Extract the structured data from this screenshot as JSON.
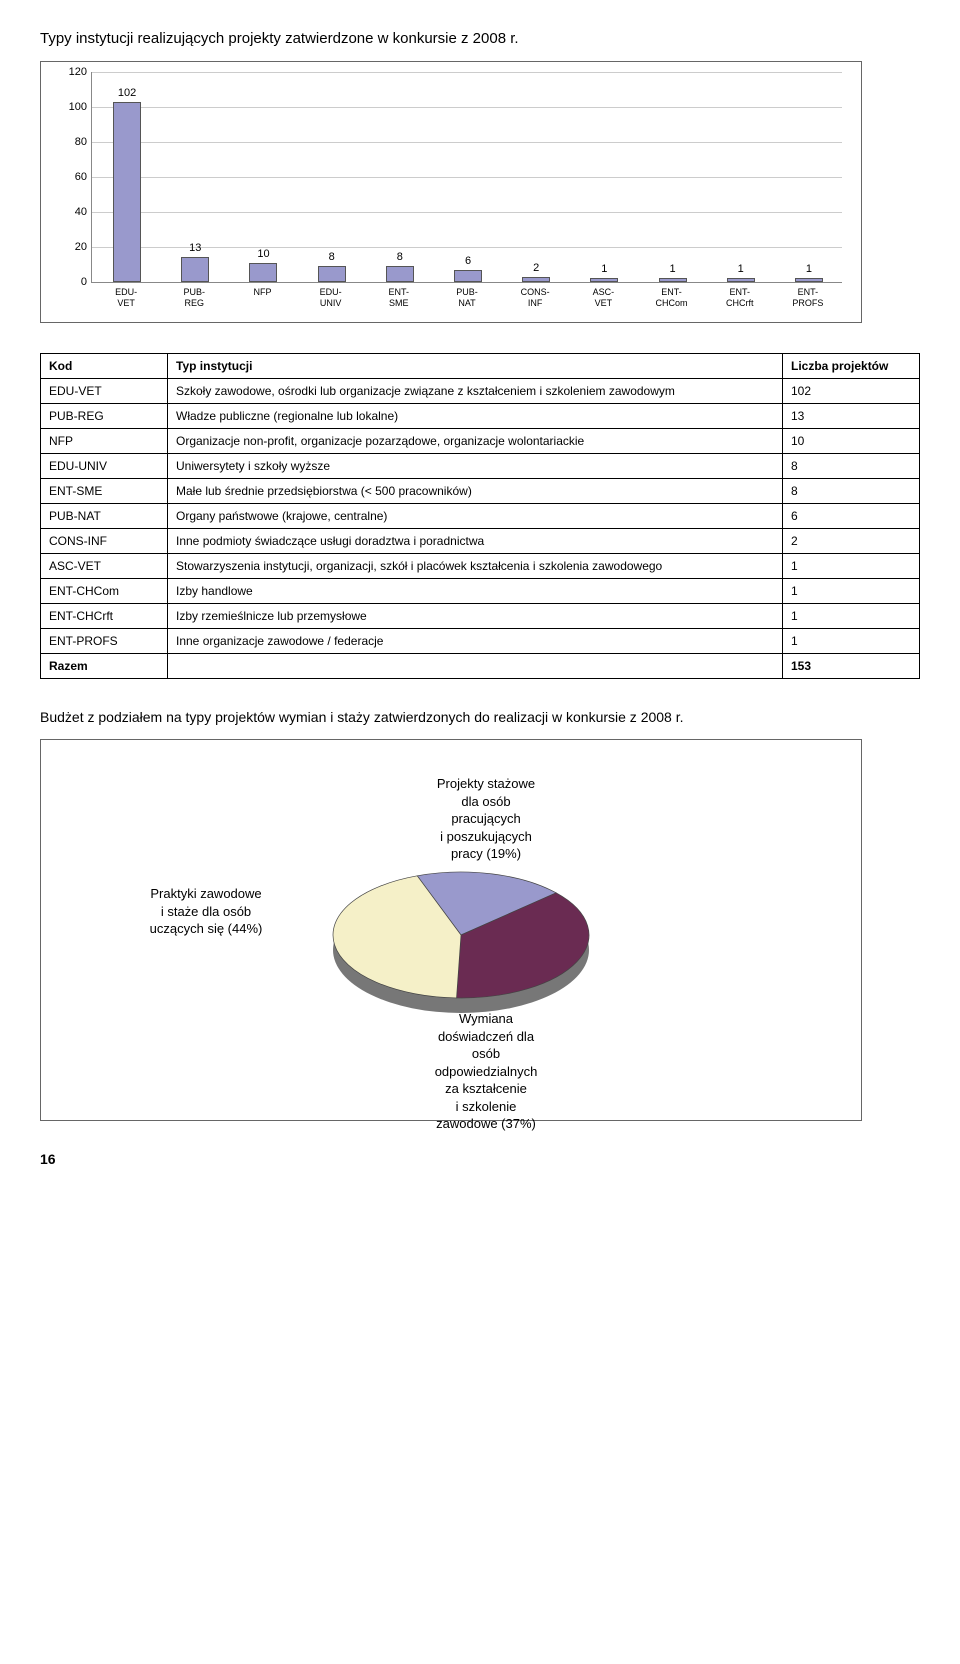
{
  "title": "Typy instytucji realizujących projekty zatwierdzone w konkursie z 2008 r.",
  "bar_chart": {
    "ylim": [
      0,
      120
    ],
    "ytick_step": 20,
    "bar_color": "#9999cc",
    "bar_border": "#555555",
    "grid_color": "#cccccc",
    "categories": [
      {
        "line1": "EDU-",
        "line2": "VET"
      },
      {
        "line1": "PUB-",
        "line2": "REG"
      },
      {
        "line1": "NFP",
        "line2": ""
      },
      {
        "line1": "EDU-",
        "line2": "UNIV"
      },
      {
        "line1": "ENT-",
        "line2": "SME"
      },
      {
        "line1": "PUB-",
        "line2": "NAT"
      },
      {
        "line1": "CONS-",
        "line2": "INF"
      },
      {
        "line1": "ASC-",
        "line2": "VET"
      },
      {
        "line1": "ENT-",
        "line2": "CHCom"
      },
      {
        "line1": "ENT-",
        "line2": "CHCrft"
      },
      {
        "line1": "ENT-",
        "line2": "PROFS"
      }
    ],
    "values": [
      102,
      13,
      10,
      8,
      8,
      6,
      2,
      1,
      1,
      1,
      1
    ]
  },
  "table": {
    "headers": {
      "kod": "Kod",
      "typ": "Typ instytucji",
      "liczba": "Liczba projektów"
    },
    "rows": [
      {
        "kod": "EDU-VET",
        "typ": "Szkoły zawodowe, ośrodki lub organizacje związane z kształceniem i szkoleniem zawodowym",
        "liczba": "102"
      },
      {
        "kod": "PUB-REG",
        "typ": "Władze publiczne (regionalne lub lokalne)",
        "liczba": "13"
      },
      {
        "kod": "NFP",
        "typ": "Organizacje non-profit, organizacje pozarządowe, organizacje wolontariackie",
        "liczba": "10"
      },
      {
        "kod": "EDU-UNIV",
        "typ": "Uniwersytety i szkoły wyższe",
        "liczba": "8"
      },
      {
        "kod": "ENT-SME",
        "typ": "Małe lub średnie przedsiębiorstwa (< 500 pracowników)",
        "liczba": "8"
      },
      {
        "kod": "PUB-NAT",
        "typ": "Organy państwowe (krajowe, centralne)",
        "liczba": "6"
      },
      {
        "kod": "CONS-INF",
        "typ": "Inne podmioty świadczące usługi doradztwa i poradnictwa",
        "liczba": "2"
      },
      {
        "kod": "ASC-VET",
        "typ": "Stowarzyszenia instytucji, organizacji, szkół i placówek kształcenia i szkolenia zawodowego",
        "liczba": "1"
      },
      {
        "kod": "ENT-CHCom",
        "typ": "Izby handlowe",
        "liczba": "1"
      },
      {
        "kod": "ENT-CHCrft",
        "typ": "Izby rzemieślnicze lub przemysłowe",
        "liczba": "1"
      },
      {
        "kod": "ENT-PROFS",
        "typ": "Inne organizacje zawodowe / federacje",
        "liczba": "1"
      }
    ],
    "total_label": "Razem",
    "total_value": "153"
  },
  "body_text": "Budżet z podziałem na typy projektów wymian i staży zatwierdzonych do realizacji w konkursie z 2008 r.",
  "pie": {
    "colors": {
      "left": "#f5f0c8",
      "top": "#9999cc",
      "right": "#6a2b52",
      "side": "#888888"
    },
    "labels": {
      "left": "Praktyki zawodowe\ni staże dla osób\nuczących się  (44%)",
      "top": "Projekty stażowe\ndla osób\npracujących\ni poszukujących\npracy (19%)",
      "bottom": "Wymiana\ndoświadczeń dla\nosób\nodpowiedzialnych\nza kształcenie\ni szkolenie\nzawodowe (37%)"
    }
  },
  "page_number": "16"
}
